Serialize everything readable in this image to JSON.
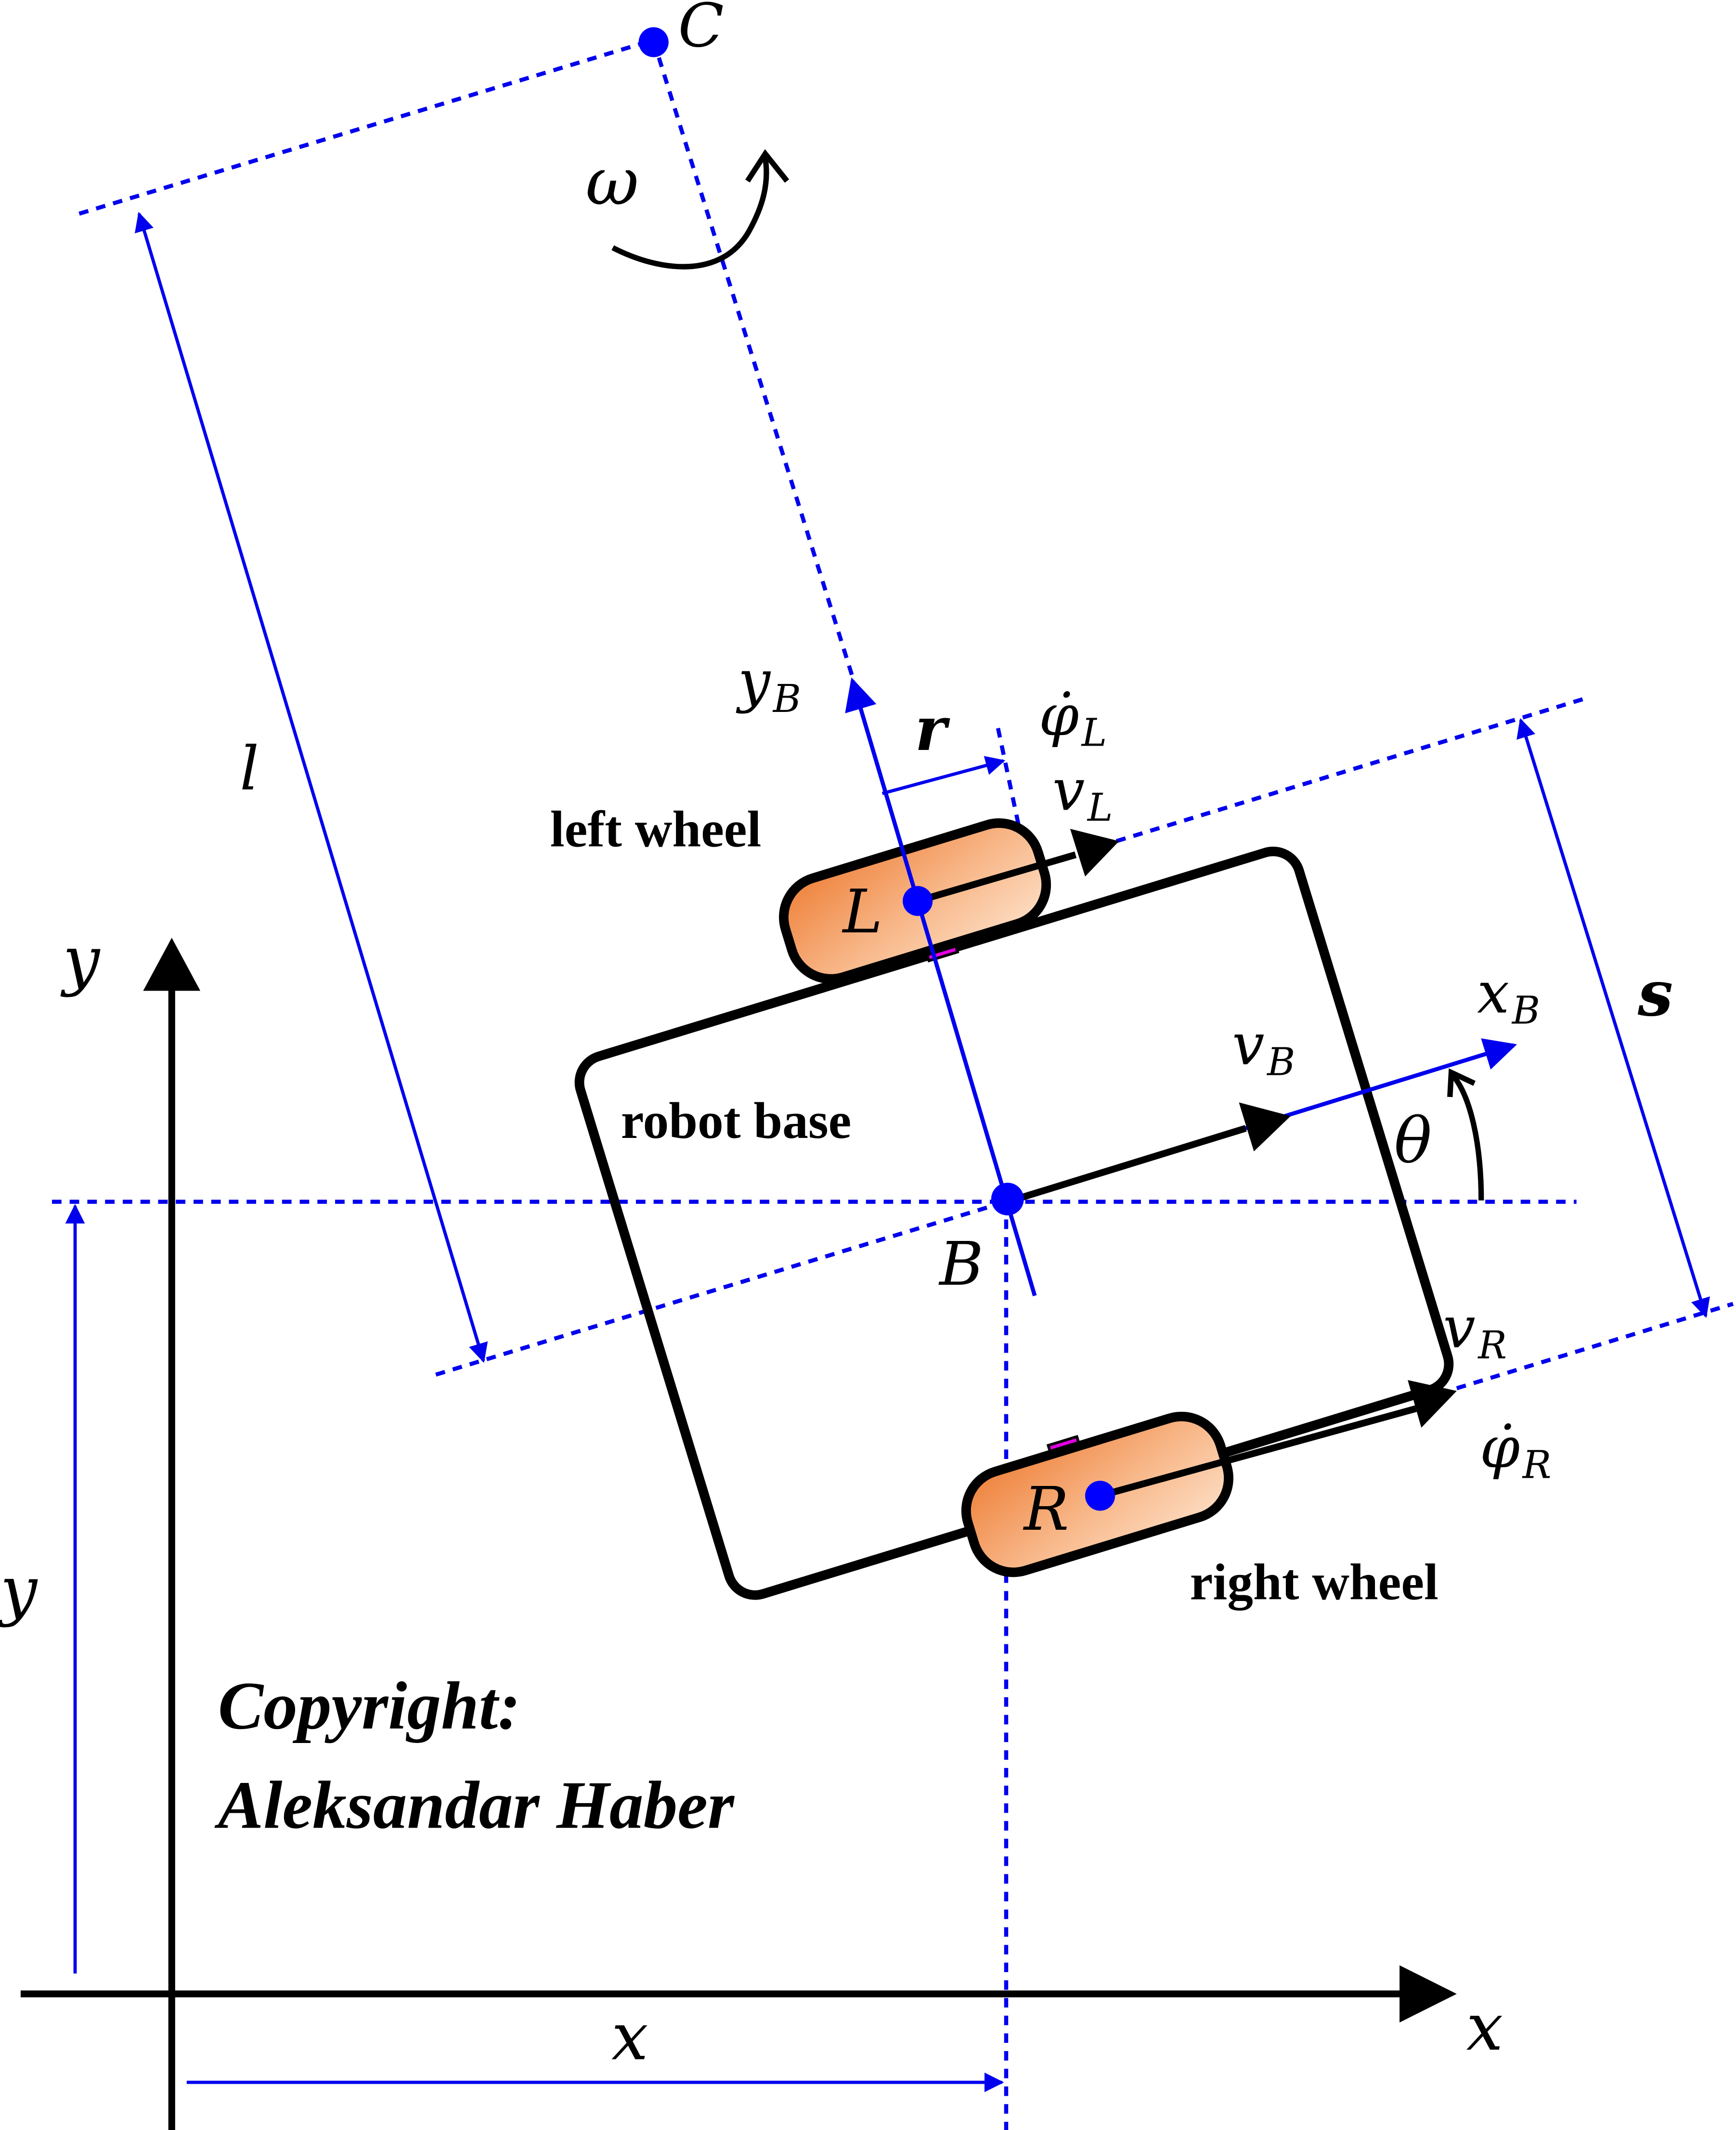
{
  "diagram": {
    "labels": {
      "point_c": "C",
      "omega": "ω",
      "l": "l",
      "y_b": "y",
      "y_b_sub": "B",
      "r": "r",
      "phi_l": "φ̇",
      "phi_l_sub": "L",
      "v_l": "v",
      "v_l_sub": "L",
      "left_wheel": "left wheel",
      "point_l": "L",
      "y_axis": "y",
      "x_b": "x",
      "x_b_sub": "B",
      "s": "s",
      "v_b": "v",
      "v_b_sub": "B",
      "robot_base": "robot base",
      "theta": "θ",
      "point_b": "B",
      "v_r": "v",
      "v_r_sub": "R",
      "phi_r": "φ̇",
      "phi_r_sub": "R",
      "point_r": "R",
      "right_wheel": "right wheel",
      "y_coord": "y",
      "x_coord": "x",
      "x_axis": "x"
    },
    "copyright": {
      "line1": "Copyright:",
      "line2": "Aleksandar Haber"
    },
    "colors": {
      "construction_blue": "#0000ee",
      "point_blue": "#0000ff",
      "wheel_fill_dark": "#ee7f38",
      "wheel_fill_light": "#fde0c8",
      "axle_magenta": "#e000e0",
      "outline_black": "#000000"
    }
  }
}
